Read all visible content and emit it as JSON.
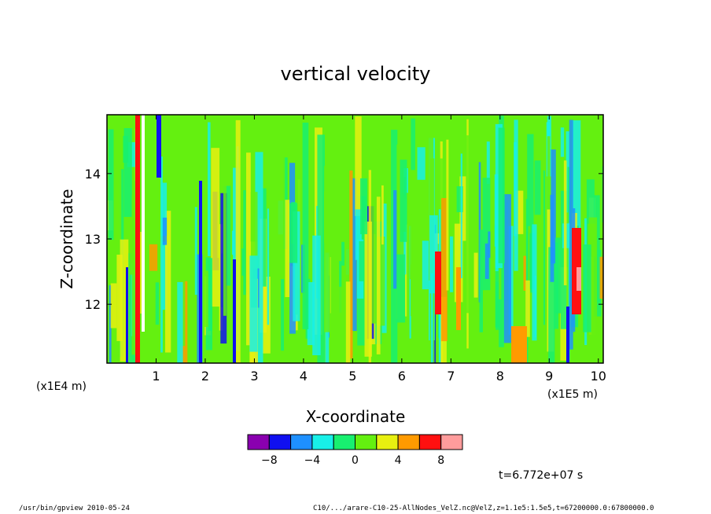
{
  "chart_data": {
    "type": "heatmap",
    "title": "vertical velocity",
    "xlabel": "X-coordinate",
    "ylabel": "Z-coordinate",
    "x_unit_label": "(x1E5 m)",
    "y_unit_label": "(x1E4 m)",
    "xlim": [
      0,
      10.1
    ],
    "ylim": [
      11.1,
      14.9
    ],
    "x_ticks": [
      "1",
      "2",
      "3",
      "4",
      "5",
      "6",
      "7",
      "8",
      "9",
      "10"
    ],
    "y_ticks": [
      "12",
      "13",
      "14"
    ],
    "colorbar": {
      "levels": [
        -10,
        -8,
        -6,
        -4,
        -2,
        0,
        2,
        4,
        6,
        8,
        10
      ],
      "colors": [
        "#8a00b0",
        "#1010f0",
        "#1e90ff",
        "#18f0e8",
        "#18f070",
        "#64f010",
        "#e8f010",
        "#ff9a00",
        "#ff1010",
        "#ff9c9c"
      ],
      "tick_labels": [
        "-8",
        "-4",
        "0",
        "4",
        "8"
      ]
    },
    "time_label": "t=6.772e+07 s",
    "grid": false
  },
  "footer": {
    "left": "/usr/bin/gpview  2010-05-24",
    "right": "C10/.../arare-C10-25-AllNodes_VelZ.nc@VelZ,z=1.1e5:1.5e5,t=67200000.0:67800000.0"
  }
}
